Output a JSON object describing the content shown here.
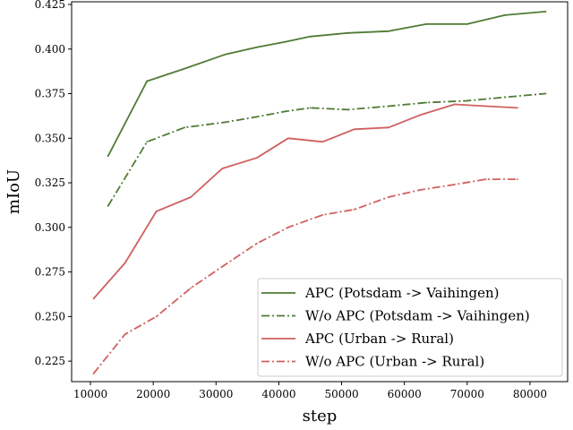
{
  "chart_data": {
    "type": "line",
    "xlabel": "step",
    "ylabel": "mIoU",
    "xlim": [
      7000,
      86000
    ],
    "ylim": [
      0.2135,
      0.4265
    ],
    "x_ticks": [
      10000,
      20000,
      30000,
      40000,
      50000,
      60000,
      70000,
      80000
    ],
    "y_ticks": [
      0.225,
      0.25,
      0.275,
      0.3,
      0.325,
      0.35,
      0.375,
      0.4,
      0.425
    ],
    "grid": false,
    "legend_position": "lower right",
    "series": [
      {
        "name": "APC (Potsdam -> Vaihingen)",
        "color": "#4f7b35",
        "style": "solid",
        "x": [
          12800,
          19000,
          25000,
          31500,
          36500,
          41000,
          45000,
          51000,
          57500,
          63500,
          70000,
          76000,
          82500
        ],
        "y": [
          0.34,
          0.382,
          0.389,
          0.397,
          0.401,
          0.404,
          0.407,
          0.409,
          0.41,
          0.414,
          0.414,
          0.419,
          0.421
        ]
      },
      {
        "name": "W/o APC (Potsdam -> Vaihingen)",
        "color": "#4f7b35",
        "style": "dashdot",
        "x": [
          12800,
          19000,
          25000,
          31500,
          36500,
          41000,
          45000,
          51000,
          57500,
          63500,
          70000,
          76000,
          82500
        ],
        "y": [
          0.312,
          0.348,
          0.356,
          0.359,
          0.362,
          0.365,
          0.367,
          0.366,
          0.368,
          0.37,
          0.371,
          0.373,
          0.375
        ]
      },
      {
        "name": "APC (Urban -> Rural)",
        "color": "#d06060",
        "style": "solid",
        "x": [
          10500,
          15500,
          20500,
          26000,
          31000,
          36500,
          41500,
          47000,
          52000,
          57500,
          62500,
          68000,
          73000,
          78000
        ],
        "y": [
          0.26,
          0.28,
          0.309,
          0.317,
          0.333,
          0.339,
          0.35,
          0.348,
          0.355,
          0.356,
          0.363,
          0.369,
          0.368,
          0.367
        ]
      },
      {
        "name": "W/o APC (Urban -> Rural)",
        "color": "#d06060",
        "style": "dashdot",
        "x": [
          10500,
          15500,
          20500,
          26000,
          31000,
          36500,
          41500,
          47000,
          52000,
          57500,
          62500,
          68000,
          73000,
          78000
        ],
        "y": [
          0.218,
          0.24,
          0.25,
          0.266,
          0.278,
          0.291,
          0.3,
          0.307,
          0.31,
          0.317,
          0.321,
          0.324,
          0.327,
          0.327
        ]
      }
    ]
  }
}
